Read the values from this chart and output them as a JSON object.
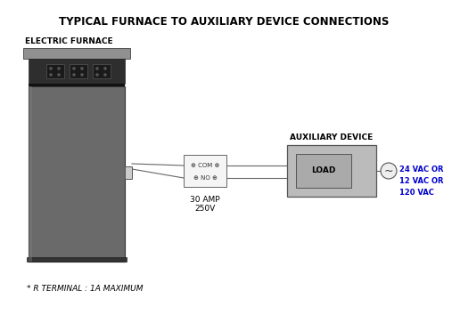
{
  "title": "TYPICAL FURNACE TO AUXILIARY DEVICE CONNECTIONS",
  "label_furnace": "ELECTRIC FURNACE",
  "label_aux": "AUXILIARY DEVICE",
  "label_load": "LOAD",
  "label_30amp": "30 AMP",
  "label_250v": "250V",
  "label_vac": "24 VAC OR\n12 VAC OR\n120 VAC",
  "label_footnote": "* R TERMINAL : 1A MAXIMUM",
  "bg_color": "#ffffff",
  "furnace_body_color": "#6a6a6a",
  "furnace_cap_color": "#909090",
  "furnace_panel_color": "#3a3a3a",
  "line_color": "#666666",
  "text_color": "#000000",
  "vac_text_color": "#0000cc",
  "title_fontsize": 8.5,
  "label_fontsize": 6.5,
  "small_fontsize": 5.5
}
